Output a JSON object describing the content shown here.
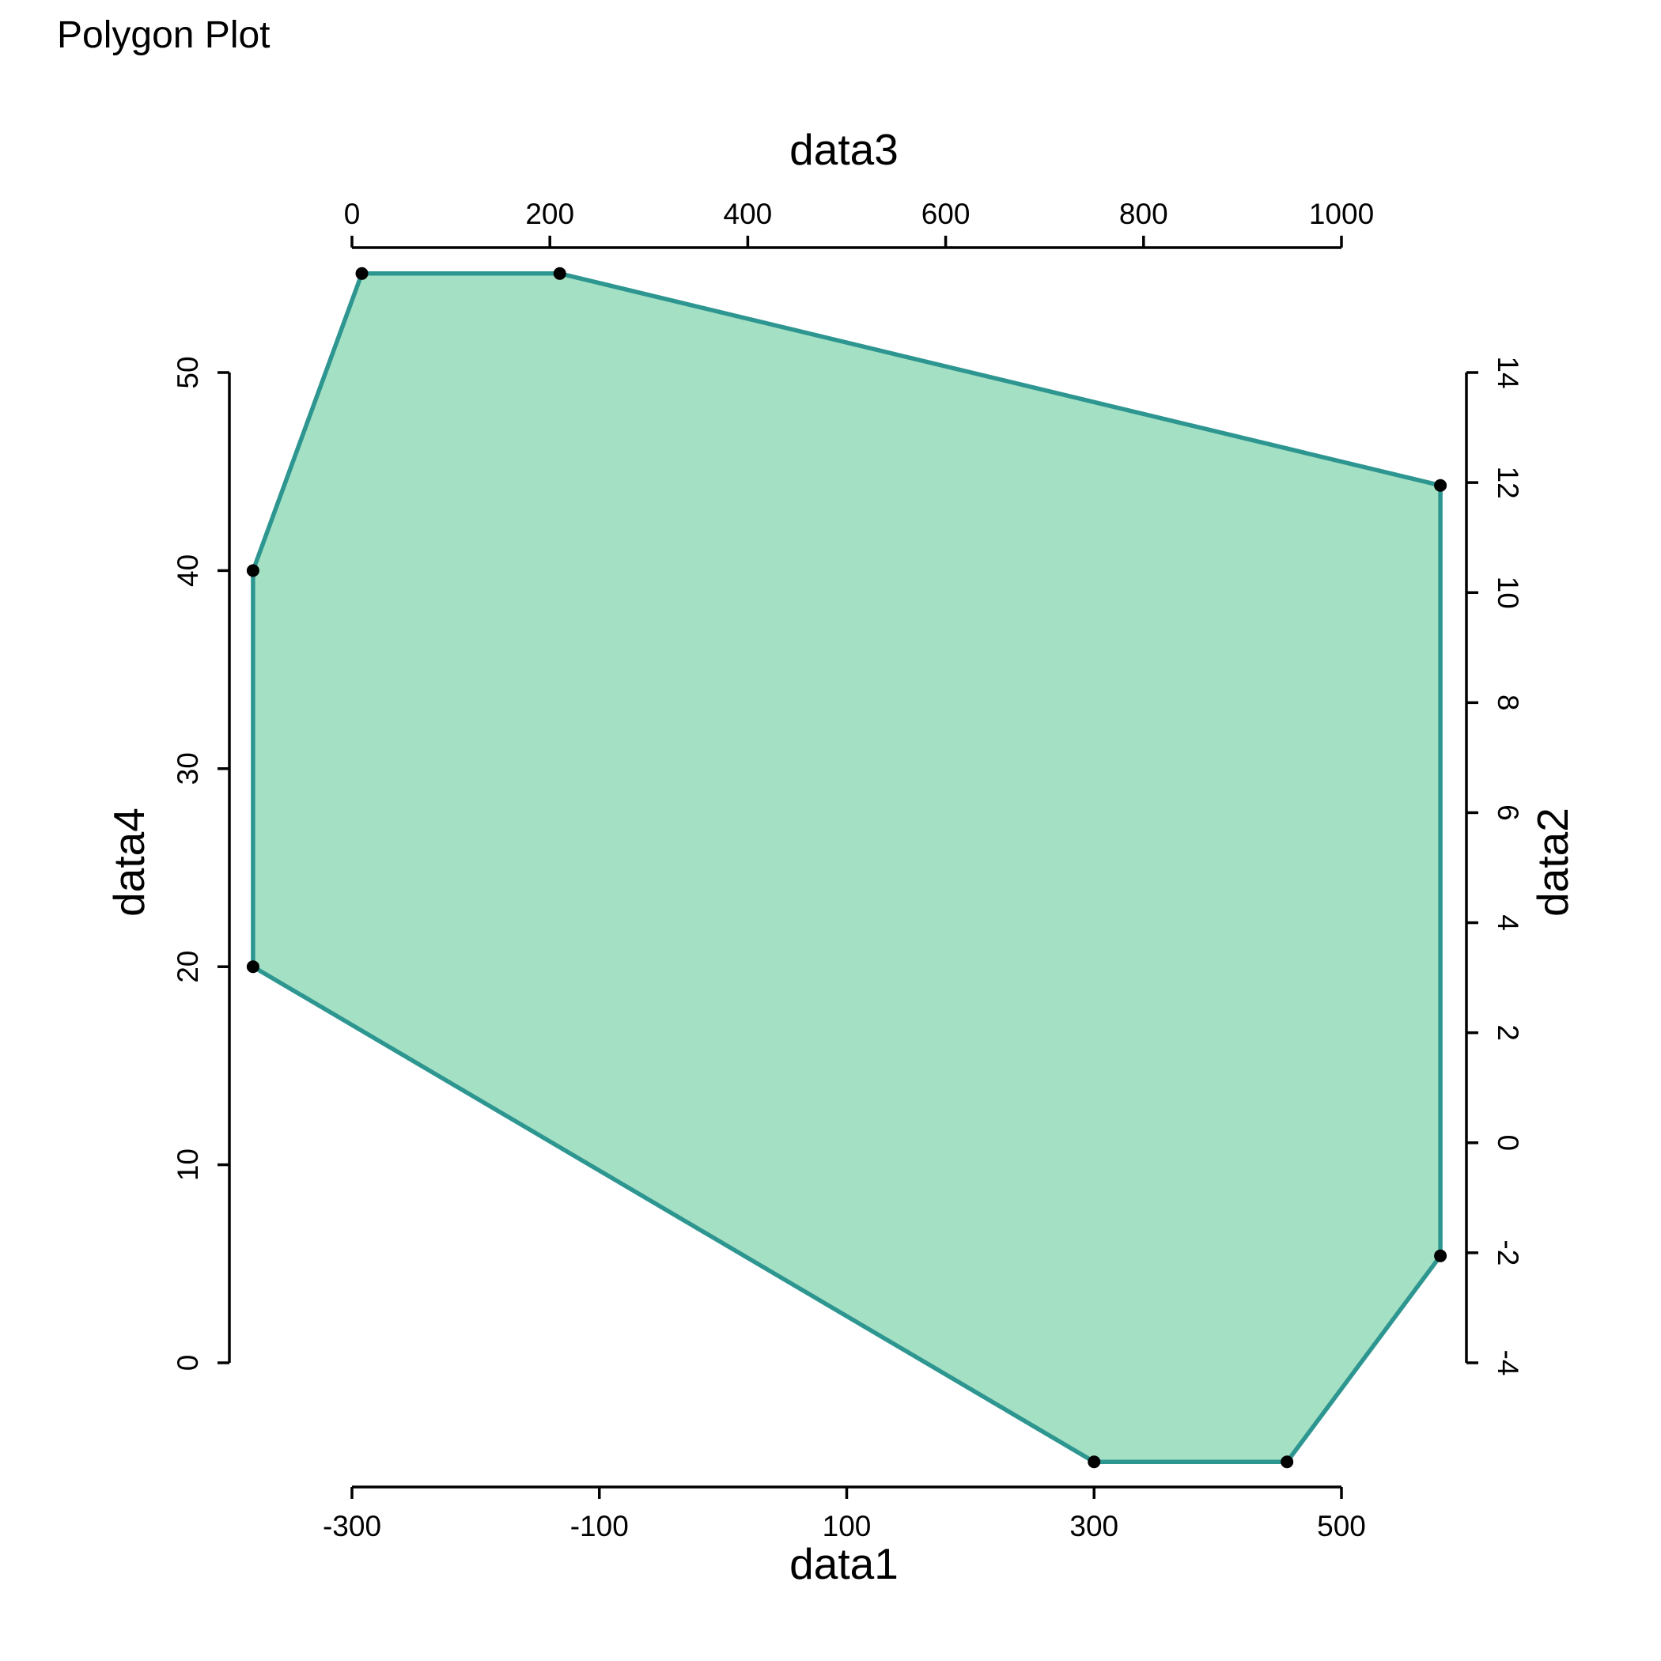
{
  "chart_data": {
    "type": "polygon",
    "title": "Polygon Plot",
    "fill_color": "#a4e0c4",
    "line_color": "#2e9690",
    "marker_color": "#000000",
    "axes": {
      "bottom": {
        "label": "data1",
        "range": [
          -300,
          500
        ],
        "ticks": [
          -300,
          -100,
          100,
          300,
          500
        ],
        "tick_labels": [
          "-300",
          "-100",
          "100",
          "300",
          "500"
        ]
      },
      "top": {
        "label": "data3",
        "range": [
          0,
          1000
        ],
        "ticks": [
          0,
          200,
          400,
          600,
          800,
          1000
        ],
        "tick_labels": [
          "0",
          "200",
          "400",
          "600",
          "800",
          "1000"
        ]
      },
      "left": {
        "label": "data4",
        "range": [
          0,
          50
        ],
        "ticks": [
          0,
          10,
          20,
          30,
          40,
          50
        ],
        "tick_labels": [
          "0",
          "10",
          "20",
          "30",
          "40",
          "50"
        ]
      },
      "right": {
        "label": "data2",
        "range": [
          -4,
          14
        ],
        "ticks": [
          -4,
          -2,
          0,
          2,
          4,
          6,
          8,
          10,
          12,
          14
        ],
        "tick_labels": [
          "-4",
          "-2",
          "0",
          "2",
          "4",
          "6",
          "8",
          "10",
          "12",
          "14"
        ]
      }
    },
    "points_data_units": [
      {
        "data3": 10,
        "data4": 55
      },
      {
        "data3": 210,
        "data4": 55
      },
      {
        "data3": 1100,
        "data4": 44.3
      },
      {
        "data3": 1100,
        "data4": 5.4
      },
      {
        "data1": 456,
        "data4": -5
      },
      {
        "data1": 300,
        "data4": -5
      },
      {
        "data1": -380,
        "data4": 20
      },
      {
        "data1": -380,
        "data4": 40
      }
    ]
  }
}
